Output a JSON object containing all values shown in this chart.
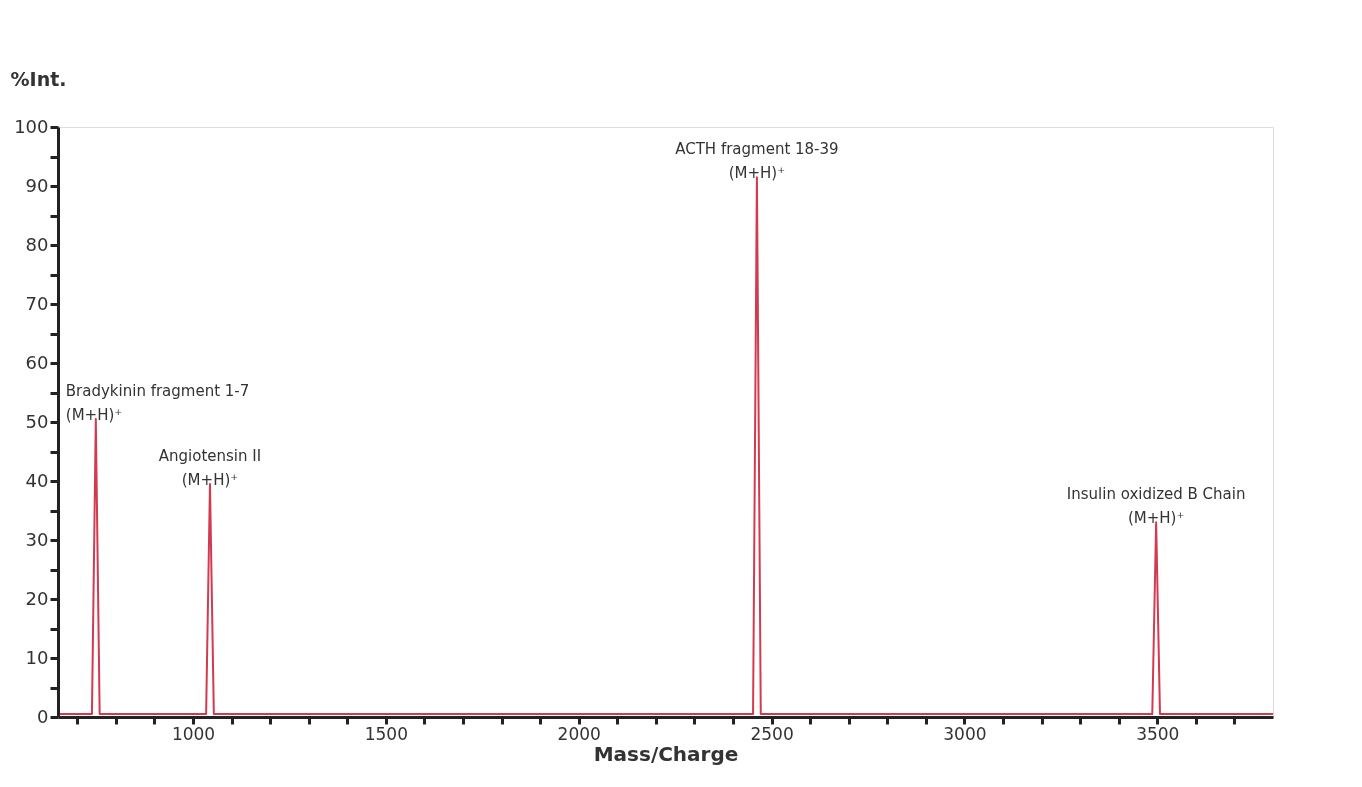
{
  "chart_data": {
    "type": "line",
    "xlabel": "Mass/Charge",
    "ylabel": "%Int.",
    "xlim": [
      650,
      3800
    ],
    "ylim": [
      0,
      100
    ],
    "xticks": [
      {
        "value": 700,
        "label": null
      },
      {
        "value": 800,
        "label": null
      },
      {
        "value": 900,
        "label": null
      },
      1000,
      {
        "value": 1100,
        "label": null
      },
      {
        "value": 1200,
        "label": null
      },
      {
        "value": 1300,
        "label": null
      },
      {
        "value": 1400,
        "label": null
      },
      1500,
      {
        "value": 1600,
        "label": null
      },
      {
        "value": 1700,
        "label": null
      },
      {
        "value": 1800,
        "label": null
      },
      {
        "value": 1900,
        "label": null
      },
      2000,
      {
        "value": 2100,
        "label": null
      },
      {
        "value": 2200,
        "label": null
      },
      {
        "value": 2300,
        "label": null
      },
      {
        "value": 2400,
        "label": null
      },
      2500,
      {
        "value": 2600,
        "label": null
      },
      {
        "value": 2700,
        "label": null
      },
      {
        "value": 2800,
        "label": null
      },
      {
        "value": 2900,
        "label": null
      },
      3000,
      {
        "value": 3100,
        "label": null
      },
      {
        "value": 3200,
        "label": null
      },
      {
        "value": 3300,
        "label": null
      },
      {
        "value": 3400,
        "label": null
      },
      3500,
      {
        "value": 3600,
        "label": null
      },
      {
        "value": 3700,
        "label": null
      }
    ],
    "yticks": [
      0,
      {
        "value": 5,
        "label": null
      },
      10,
      {
        "value": 15,
        "label": null
      },
      20,
      {
        "value": 25,
        "label": null
      },
      30,
      {
        "value": 35,
        "label": null
      },
      40,
      {
        "value": 45,
        "label": null
      },
      50,
      {
        "value": 55,
        "label": null
      },
      60,
      {
        "value": 65,
        "label": null
      },
      70,
      {
        "value": 75,
        "label": null
      },
      80,
      {
        "value": 85,
        "label": null
      },
      90,
      {
        "value": 95,
        "label": null
      },
      100
    ],
    "grid": false,
    "marker": "none",
    "line_style": "solid",
    "series": [
      {
        "color": "#d23a50",
        "x": [
          655,
          738,
          748,
          758,
          1034,
          1044,
          1054,
          2452,
          2462,
          2472,
          3487,
          3497,
          3507,
          3800
        ],
        "values": [
          0.5,
          0.5,
          50.5,
          0.5,
          0.5,
          39.5,
          0.5,
          0.5,
          91.5,
          0.5,
          0.5,
          33,
          0.5,
          0.5
        ]
      }
    ],
    "annotations": [
      {
        "text": "Bradykinin fragment 1-7\n(M+H)⁺",
        "x": 748,
        "y": 50.5
      },
      {
        "text": "Angiotensin II\n(M+H)⁺",
        "x": 1044,
        "y": 39.5
      },
      {
        "text": "ACTH fragment 18-39\n(M+H)⁺",
        "x": 2462,
        "y": 91.5
      },
      {
        "text": "Insulin oxidized B Chain\n(M+H)⁺",
        "x": 3497,
        "y": 33
      }
    ]
  }
}
